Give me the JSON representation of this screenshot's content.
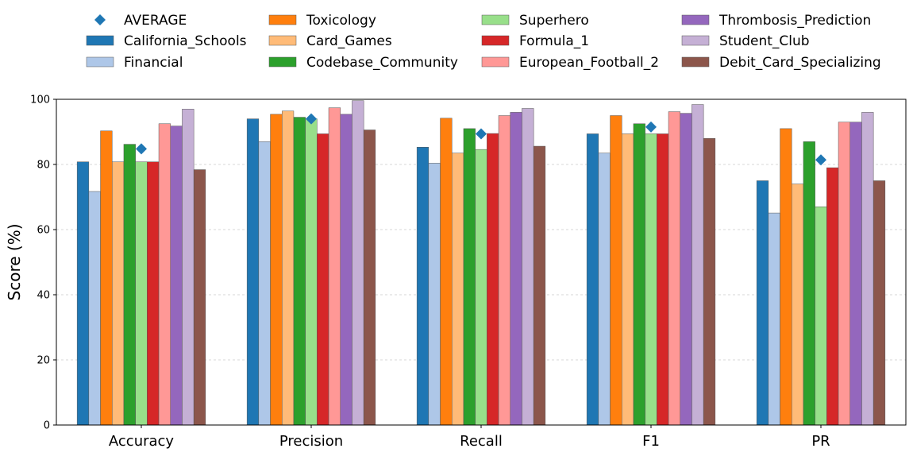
{
  "chart_data": {
    "type": "bar",
    "title": "",
    "xlabel": "",
    "ylabel": "Score (%)",
    "ylim": [
      0,
      100
    ],
    "yticks": [
      0,
      20,
      40,
      60,
      80,
      100
    ],
    "grid": "y-dashed",
    "legend_position": "top",
    "categories": [
      "Accuracy",
      "Precision",
      "Recall",
      "F1",
      "PR"
    ],
    "average": {
      "name": "AVERAGE",
      "marker": "diamond",
      "color": "#1f77b4",
      "values": [
        84.8,
        94.0,
        89.4,
        91.5,
        81.4
      ]
    },
    "series": [
      {
        "name": "California_Schools",
        "color": "#1f77b4",
        "values": [
          80.8,
          94.0,
          85.3,
          89.4,
          75.0
        ]
      },
      {
        "name": "Financial",
        "color": "#aec7e8",
        "values": [
          71.7,
          87.0,
          80.4,
          83.5,
          65.1
        ]
      },
      {
        "name": "Toxicology",
        "color": "#ff7f0e",
        "values": [
          90.3,
          95.4,
          94.2,
          95.0,
          91.0
        ]
      },
      {
        "name": "Card_Games",
        "color": "#ffbb78",
        "values": [
          80.8,
          96.4,
          83.5,
          89.4,
          74.0
        ]
      },
      {
        "name": "Codebase_Community",
        "color": "#2ca02c",
        "values": [
          86.2,
          94.5,
          91.0,
          92.5,
          87.0
        ]
      },
      {
        "name": "Superhero",
        "color": "#98df8a",
        "values": [
          80.8,
          94.0,
          84.6,
          89.4,
          67.0
        ]
      },
      {
        "name": "Formula_1",
        "color": "#d62728",
        "values": [
          80.8,
          89.4,
          89.5,
          89.4,
          79.0
        ]
      },
      {
        "name": "European_Football_2",
        "color": "#ff9896",
        "values": [
          92.5,
          97.4,
          95.0,
          96.2,
          93.0
        ]
      },
      {
        "name": "Thrombosis_Prediction",
        "color": "#9467bd",
        "values": [
          91.8,
          95.4,
          96.0,
          95.7,
          93.0
        ]
      },
      {
        "name": "Student_Club",
        "color": "#c5b0d5",
        "values": [
          97.0,
          99.6,
          97.2,
          98.4,
          96.0
        ]
      },
      {
        "name": "Debit_Card_Specializing",
        "color": "#8c564b",
        "values": [
          78.4,
          90.6,
          85.6,
          88.0,
          75.0
        ]
      }
    ]
  }
}
